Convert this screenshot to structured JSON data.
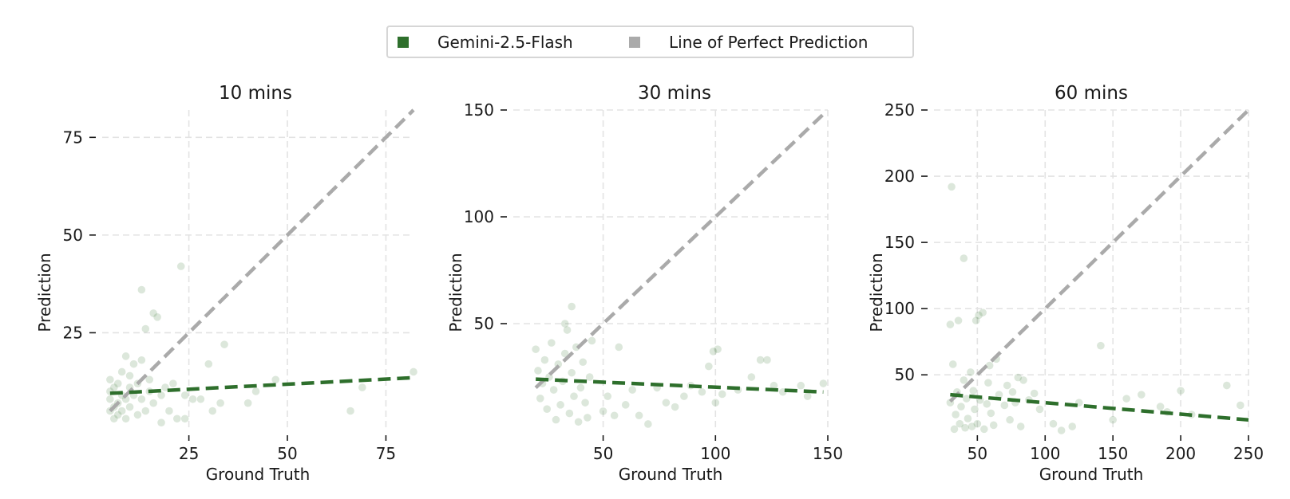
{
  "legend": {
    "placement": "top-center",
    "items": [
      {
        "label": "Gemini-2.5-Flash",
        "color": "#2e6f2c"
      },
      {
        "label": "Line of Perfect Prediction",
        "color": "#aaaaaa"
      }
    ]
  },
  "chart_data": [
    {
      "type": "scatter",
      "title": "10 mins",
      "xlabel": "Ground Truth",
      "ylabel": "Prediction",
      "xlim": [
        3,
        82
      ],
      "ylim": [
        0,
        82
      ],
      "xticks": [
        25,
        50,
        75
      ],
      "yticks": [
        25,
        50,
        75
      ],
      "grid": true,
      "series": [
        {
          "name": "Gemini-2.5-Flash",
          "kind": "points",
          "points": [
            [
              5,
              5
            ],
            [
              5,
              8
            ],
            [
              5,
              10
            ],
            [
              5,
              13
            ],
            [
              6,
              3
            ],
            [
              6,
              6
            ],
            [
              6,
              11
            ],
            [
              7,
              7
            ],
            [
              7,
              4
            ],
            [
              7,
              12
            ],
            [
              8,
              9
            ],
            [
              8,
              5
            ],
            [
              8,
              15
            ],
            [
              9,
              8
            ],
            [
              9,
              3
            ],
            [
              9,
              19
            ],
            [
              10,
              11
            ],
            [
              10,
              6
            ],
            [
              10,
              14
            ],
            [
              11,
              9
            ],
            [
              11,
              17
            ],
            [
              12,
              4
            ],
            [
              12,
              12
            ],
            [
              13,
              8
            ],
            [
              13,
              18
            ],
            [
              13,
              36
            ],
            [
              14,
              5
            ],
            [
              14,
              26
            ],
            [
              15,
              10
            ],
            [
              15,
              13
            ],
            [
              16,
              7
            ],
            [
              16,
              30
            ],
            [
              17,
              29
            ],
            [
              18,
              2
            ],
            [
              18,
              9
            ],
            [
              19,
              11
            ],
            [
              20,
              5
            ],
            [
              21,
              12
            ],
            [
              22,
              3
            ],
            [
              23,
              42
            ],
            [
              24,
              3
            ],
            [
              24,
              9
            ],
            [
              26,
              8
            ],
            [
              28,
              8
            ],
            [
              30,
              17
            ],
            [
              31,
              5
            ],
            [
              33,
              7
            ],
            [
              34,
              22
            ],
            [
              40,
              7
            ],
            [
              42,
              10
            ],
            [
              47,
              13
            ],
            [
              66,
              5
            ],
            [
              69,
              11
            ],
            [
              82,
              15
            ]
          ]
        },
        {
          "name": "Gemini-2.5-Flash",
          "kind": "trend",
          "x": [
            5,
            82
          ],
          "y": [
            9.5,
            13.5
          ]
        },
        {
          "name": "Line of Perfect Prediction",
          "kind": "identity",
          "x": [
            5,
            82
          ],
          "y": [
            5,
            82
          ]
        }
      ]
    },
    {
      "type": "scatter",
      "title": "30 mins",
      "xlabel": "Ground Truth",
      "ylabel": "Prediction",
      "xlim": [
        10,
        150
      ],
      "ylim": [
        0,
        150
      ],
      "xticks": [
        50,
        100,
        150
      ],
      "yticks": [
        50,
        100,
        150
      ],
      "grid": true,
      "series": [
        {
          "name": "Gemini-2.5-Flash",
          "kind": "points",
          "points": [
            [
              20,
              38
            ],
            [
              21,
              28
            ],
            [
              22,
              15
            ],
            [
              23,
              22
            ],
            [
              24,
              33
            ],
            [
              25,
              10
            ],
            [
              26,
              25
            ],
            [
              27,
              41
            ],
            [
              28,
              19
            ],
            [
              29,
              5
            ],
            [
              30,
              31
            ],
            [
              31,
              12
            ],
            [
              32,
              23
            ],
            [
              33,
              36
            ],
            [
              33,
              50
            ],
            [
              34,
              47
            ],
            [
              35,
              8
            ],
            [
              36,
              27
            ],
            [
              36,
              58
            ],
            [
              37,
              16
            ],
            [
              38,
              39
            ],
            [
              39,
              4
            ],
            [
              40,
              20
            ],
            [
              41,
              32
            ],
            [
              42,
              13
            ],
            [
              43,
              6
            ],
            [
              44,
              25
            ],
            [
              45,
              42
            ],
            [
              50,
              9
            ],
            [
              52,
              16
            ],
            [
              55,
              7
            ],
            [
              57,
              39
            ],
            [
              60,
              12
            ],
            [
              63,
              19
            ],
            [
              66,
              7
            ],
            [
              70,
              3
            ],
            [
              74,
              20
            ],
            [
              78,
              13
            ],
            [
              82,
              11
            ],
            [
              86,
              16
            ],
            [
              89,
              21
            ],
            [
              94,
              18
            ],
            [
              97,
              30
            ],
            [
              99,
              37
            ],
            [
              100,
              13
            ],
            [
              101,
              38
            ],
            [
              103,
              17
            ],
            [
              110,
              19
            ],
            [
              116,
              25
            ],
            [
              120,
              33
            ],
            [
              123,
              33
            ],
            [
              126,
              21
            ],
            [
              130,
              18
            ],
            [
              138,
              21
            ],
            [
              141,
              16
            ],
            [
              148,
              22
            ]
          ]
        },
        {
          "name": "Gemini-2.5-Flash",
          "kind": "trend",
          "x": [
            20,
            148
          ],
          "y": [
            24,
            18
          ]
        },
        {
          "name": "Line of Perfect Prediction",
          "kind": "identity",
          "x": [
            20,
            148
          ],
          "y": [
            20,
            148
          ]
        }
      ]
    },
    {
      "type": "scatter",
      "title": "60 mins",
      "xlabel": "Ground Truth",
      "ylabel": "Prediction",
      "xlim": [
        18,
        250
      ],
      "ylim": [
        8,
        250
      ],
      "xticks": [
        50,
        100,
        150,
        200,
        250
      ],
      "yticks": [
        50,
        100,
        150,
        200,
        250
      ],
      "grid": true,
      "series": [
        {
          "name": "Gemini-2.5-Flash",
          "kind": "points",
          "points": [
            [
              30,
              29
            ],
            [
              30,
              88
            ],
            [
              31,
              192
            ],
            [
              32,
              58
            ],
            [
              33,
              9
            ],
            [
              34,
              20
            ],
            [
              35,
              37
            ],
            [
              36,
              91
            ],
            [
              37,
              13
            ],
            [
              38,
              26
            ],
            [
              40,
              46
            ],
            [
              40,
              138
            ],
            [
              41,
              10
            ],
            [
              42,
              32
            ],
            [
              43,
              17
            ],
            [
              45,
              52
            ],
            [
              46,
              11
            ],
            [
              47,
              38
            ],
            [
              48,
              24
            ],
            [
              49,
              91
            ],
            [
              50,
              13
            ],
            [
              51,
              95
            ],
            [
              52,
              31
            ],
            [
              54,
              97
            ],
            [
              55,
              9
            ],
            [
              57,
              28
            ],
            [
              58,
              44
            ],
            [
              59,
              57
            ],
            [
              60,
              21
            ],
            [
              62,
              12
            ],
            [
              64,
              62
            ],
            [
              66,
              35
            ],
            [
              70,
              27
            ],
            [
              72,
              42
            ],
            [
              74,
              16
            ],
            [
              76,
              37
            ],
            [
              78,
              29
            ],
            [
              80,
              48
            ],
            [
              82,
              11
            ],
            [
              84,
              46
            ],
            [
              88,
              31
            ],
            [
              92,
              36
            ],
            [
              96,
              24
            ],
            [
              106,
              13
            ],
            [
              112,
              8
            ],
            [
              120,
              11
            ],
            [
              125,
              29
            ],
            [
              141,
              72
            ],
            [
              150,
              16
            ],
            [
              160,
              32
            ],
            [
              171,
              35
            ],
            [
              185,
              26
            ],
            [
              190,
              22
            ],
            [
              200,
              38
            ],
            [
              208,
              20
            ],
            [
              234,
              42
            ],
            [
              244,
              27
            ]
          ]
        },
        {
          "name": "Gemini-2.5-Flash",
          "kind": "trend",
          "x": [
            30,
            250
          ],
          "y": [
            35,
            16
          ]
        },
        {
          "name": "Line of Perfect Prediction",
          "kind": "identity",
          "x": [
            30,
            250
          ],
          "y": [
            30,
            250
          ]
        }
      ]
    }
  ]
}
